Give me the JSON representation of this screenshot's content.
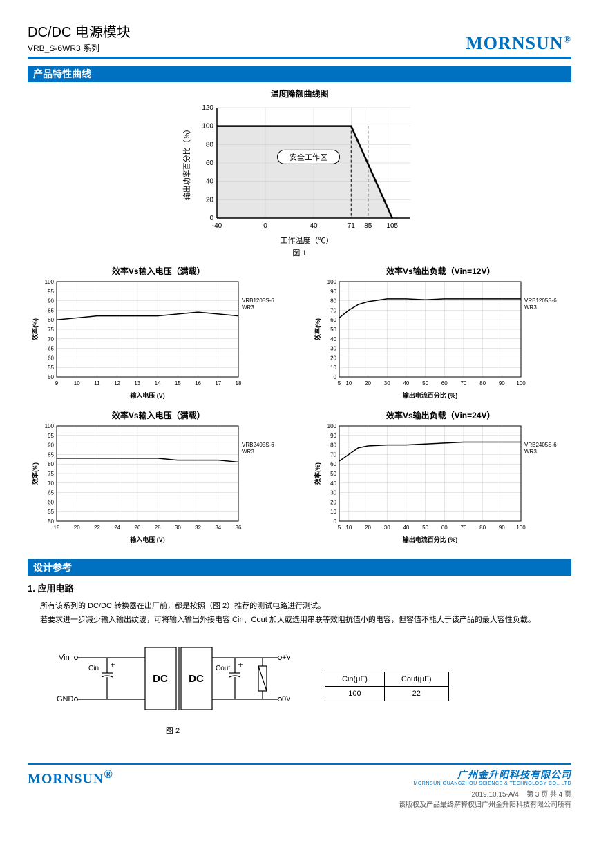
{
  "header": {
    "title": "DC/DC 电源模块",
    "subtitle": "VRB_S-6WR3 系列",
    "brand": "MORNSUN",
    "brand_reg": "®"
  },
  "section1": {
    "title": "产品特性曲线"
  },
  "derating_chart": {
    "type": "area-line",
    "title": "温度降额曲线图",
    "caption": "图 1",
    "xlabel": "工作温度（℃）",
    "ylabel": "输出功率百分比（%）",
    "xlim": [
      -40,
      120
    ],
    "xtick_vals": [
      -40,
      0,
      40,
      71,
      85,
      105
    ],
    "ylim": [
      0,
      120
    ],
    "ytick_step": 20,
    "safe_label": "安全工作区",
    "curve": [
      [
        -40,
        100
      ],
      [
        71,
        100
      ],
      [
        105,
        0
      ]
    ],
    "dashed_x": [
      71,
      85
    ],
    "line_color": "#000000",
    "line_width": 2.5,
    "fill_color": "#e6e6e6",
    "grid_color": "#cccccc",
    "label_fontsize": 11
  },
  "chart_a": {
    "type": "line",
    "title": "效率Vs输入电压（满载）",
    "xlabel": "输入电压 (V)",
    "ylabel": "效率(%)",
    "xlim": [
      9,
      18
    ],
    "xtick_step": 1,
    "ylim": [
      50,
      100
    ],
    "ytick_step": 5,
    "series": [
      {
        "name": "VRB1205S-6WR3",
        "color": "#000000",
        "line_width": 1.5,
        "data": [
          [
            9,
            80
          ],
          [
            10,
            81
          ],
          [
            11,
            82
          ],
          [
            12,
            82
          ],
          [
            13,
            82
          ],
          [
            14,
            82
          ],
          [
            15,
            83
          ],
          [
            16,
            84
          ],
          [
            17,
            83
          ],
          [
            18,
            82
          ]
        ]
      }
    ],
    "grid_color": "#cccccc"
  },
  "chart_b": {
    "type": "line",
    "title": "效率Vs输出负载（Vin=12V）",
    "xlabel": "输出电流百分比 (%)",
    "ylabel": "效率(%)",
    "xlim": [
      5,
      100
    ],
    "xtick_vals": [
      5,
      10,
      20,
      30,
      40,
      50,
      60,
      70,
      80,
      90,
      100
    ],
    "ylim": [
      0,
      100
    ],
    "ytick_step": 10,
    "series": [
      {
        "name": "VRB1205S-6WR3",
        "color": "#000000",
        "line_width": 1.5,
        "data": [
          [
            5,
            62
          ],
          [
            10,
            70
          ],
          [
            15,
            76
          ],
          [
            20,
            79
          ],
          [
            30,
            82
          ],
          [
            40,
            82
          ],
          [
            50,
            81
          ],
          [
            60,
            82
          ],
          [
            70,
            82
          ],
          [
            80,
            82
          ],
          [
            90,
            82
          ],
          [
            100,
            82
          ]
        ]
      }
    ],
    "grid_color": "#cccccc"
  },
  "chart_c": {
    "type": "line",
    "title": "效率Vs输入电压（满载）",
    "xlabel": "输入电压 (V)",
    "ylabel": "效率(%)",
    "xlim": [
      18,
      36
    ],
    "xtick_step": 2,
    "ylim": [
      50,
      100
    ],
    "ytick_step": 5,
    "series": [
      {
        "name": "VRB2405S-6WR3",
        "color": "#000000",
        "line_width": 1.5,
        "data": [
          [
            18,
            83
          ],
          [
            20,
            83
          ],
          [
            22,
            83
          ],
          [
            24,
            83
          ],
          [
            26,
            83
          ],
          [
            28,
            83
          ],
          [
            30,
            82
          ],
          [
            32,
            82
          ],
          [
            34,
            82
          ],
          [
            36,
            81
          ]
        ]
      }
    ],
    "grid_color": "#cccccc"
  },
  "chart_d": {
    "type": "line",
    "title": "效率Vs输出负载（Vin=24V）",
    "xlabel": "输出电流百分比 (%)",
    "ylabel": "效率(%)",
    "xlim": [
      5,
      100
    ],
    "xtick_vals": [
      5,
      10,
      20,
      30,
      40,
      50,
      60,
      70,
      80,
      90,
      100
    ],
    "ylim": [
      0,
      100
    ],
    "ytick_step": 10,
    "series": [
      {
        "name": "VRB2405S-6WR3",
        "color": "#000000",
        "line_width": 1.5,
        "data": [
          [
            5,
            63
          ],
          [
            10,
            70
          ],
          [
            15,
            77
          ],
          [
            20,
            79
          ],
          [
            30,
            80
          ],
          [
            40,
            80
          ],
          [
            50,
            81
          ],
          [
            60,
            82
          ],
          [
            70,
            83
          ],
          [
            80,
            83
          ],
          [
            90,
            83
          ],
          [
            100,
            83
          ]
        ]
      }
    ],
    "grid_color": "#cccccc"
  },
  "section2": {
    "title": "设计参考",
    "item1": "1. 应用电路"
  },
  "para1": "所有该系列的 DC/DC 转换器在出厂前，都是按照（图 2）推荐的测试电路进行测试。",
  "para2": "若要求进一步减少输入输出纹波，可将输入输出外接电容 Cin、Cout 加大或选用串联等效阻抗值小的电容，但容值不能大于该产品的最大容性负载。",
  "circuit": {
    "caption": "图 2",
    "vin": "Vin",
    "gnd": "GND",
    "vo": "+Vo",
    "zero": "0V",
    "cin": "Cin",
    "cout": "Cout",
    "dc1": "DC",
    "dc2": "DC"
  },
  "cap_table": {
    "headers": [
      "Cin(μF)",
      "Cout(μF)"
    ],
    "row": [
      "100",
      "22"
    ]
  },
  "footer": {
    "brand": "MORNSUN",
    "company_cn": "广州金升阳科技有限公司",
    "company_en": "MORNSUN GUANGZHOU SCIENCE & TECHNOLOGY CO., LTD",
    "date_rev": "2019.10.15-A/4",
    "page": "第 3 页 共 4 页",
    "copyright": "该版权及产品最终解释权归广州金升阳科技有限公司所有"
  }
}
